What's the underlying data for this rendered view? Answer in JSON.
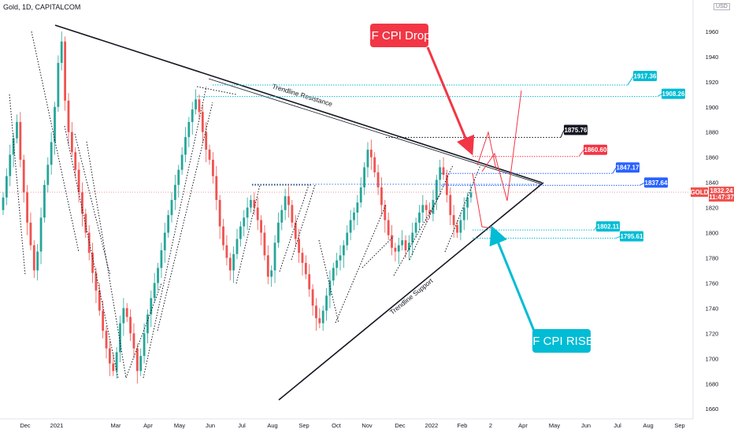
{
  "header": {
    "symbol": "Gold, 1D, CAPITALCOM",
    "currency": "USD"
  },
  "colors": {
    "up": "#26a69a",
    "down": "#ef5350",
    "black": "#131722",
    "red": "#f23645",
    "blue": "#2962ff",
    "cyan": "#00bcd4",
    "dotted_blue": "#3179f5"
  },
  "chart_data": {
    "type": "candlestick",
    "title": "Gold, 1D, CAPITALCOM",
    "y_axis": {
      "ticks": [
        1660,
        1680,
        1700,
        1720,
        1740,
        1760,
        1780,
        1800,
        1820,
        1840,
        1860,
        1880,
        1900,
        1920,
        1940,
        1960
      ],
      "ylim": [
        1652,
        1985
      ]
    },
    "x_axis": {
      "ticks": [
        "Dec",
        "2021",
        "Mar",
        "Apr",
        "May",
        "Jun",
        "Jul",
        "Aug",
        "Sep",
        "Oct",
        "Nov",
        "Dec",
        "2022",
        "Feb",
        "2",
        "Apr",
        "May",
        "Jun",
        "Jul",
        "Aug",
        "Sep"
      ]
    },
    "last_price": {
      "label": "GOLD",
      "value": "1832.24",
      "countdown": "11:47:37"
    },
    "approx_closes": [
      1828,
      1845,
      1862,
      1875,
      1888,
      1858,
      1832,
      1808,
      1790,
      1770,
      1785,
      1812,
      1838,
      1854,
      1872,
      1900,
      1935,
      1952,
      1905,
      1880,
      1864,
      1850,
      1832,
      1815,
      1800,
      1784,
      1768,
      1754,
      1738,
      1722,
      1708,
      1696,
      1690,
      1705,
      1728,
      1740,
      1733,
      1720,
      1708,
      1690,
      1702,
      1720,
      1735,
      1748,
      1760,
      1772,
      1786,
      1800,
      1814,
      1826,
      1838,
      1850,
      1862,
      1876,
      1888,
      1898,
      1906,
      1896,
      1880,
      1866,
      1858,
      1845,
      1826,
      1805,
      1790,
      1780,
      1770,
      1783,
      1795,
      1805,
      1812,
      1820,
      1826,
      1820,
      1810,
      1800,
      1782,
      1765,
      1770,
      1792,
      1808,
      1818,
      1829,
      1822,
      1808,
      1795,
      1784,
      1776,
      1767,
      1755,
      1742,
      1732,
      1728,
      1738,
      1750,
      1762,
      1772,
      1778,
      1782,
      1790,
      1800,
      1810,
      1816,
      1824,
      1836,
      1852,
      1866,
      1860,
      1848,
      1836,
      1822,
      1810,
      1798,
      1788,
      1785,
      1790,
      1794,
      1786,
      1792,
      1800,
      1808,
      1816,
      1822,
      1818,
      1815,
      1826,
      1842,
      1852,
      1846,
      1830,
      1814,
      1806,
      1800,
      1810,
      1820,
      1828,
      1832
    ],
    "trendlines": [
      {
        "name": "Trendline Resistance",
        "from": [
          "2020-11-23",
          1962
        ],
        "to": [
          "2022-04-20",
          1835
        ]
      },
      {
        "name": "Trendline Support",
        "from": [
          "2021-08-09",
          1665
        ],
        "to": [
          "2022-04-20",
          1835
        ]
      }
    ],
    "levels": [
      {
        "value": 1917.36,
        "label": "1917.36",
        "color": "cyan"
      },
      {
        "value": 1908.26,
        "label": "1908.26",
        "color": "cyan"
      },
      {
        "value": 1875.76,
        "label": "1875.76",
        "color": "black"
      },
      {
        "value": 1860.6,
        "label": "1860.60",
        "color": "red"
      },
      {
        "value": 1847.17,
        "label": "1847.17",
        "color": "blue"
      },
      {
        "value": 1837.64,
        "label": "1837.64",
        "color": "blue"
      },
      {
        "value": 1802.11,
        "label": "1802.11",
        "color": "cyan"
      },
      {
        "value": 1795.61,
        "label": "1795.61",
        "color": "cyan"
      }
    ],
    "annotations": [
      {
        "text": "IF CPI Drop",
        "color": "red"
      },
      {
        "text": "IF CPI RISE",
        "color": "cyan"
      },
      {
        "text": "Trendline Resistance"
      },
      {
        "text": "Trendline Support"
      }
    ]
  }
}
